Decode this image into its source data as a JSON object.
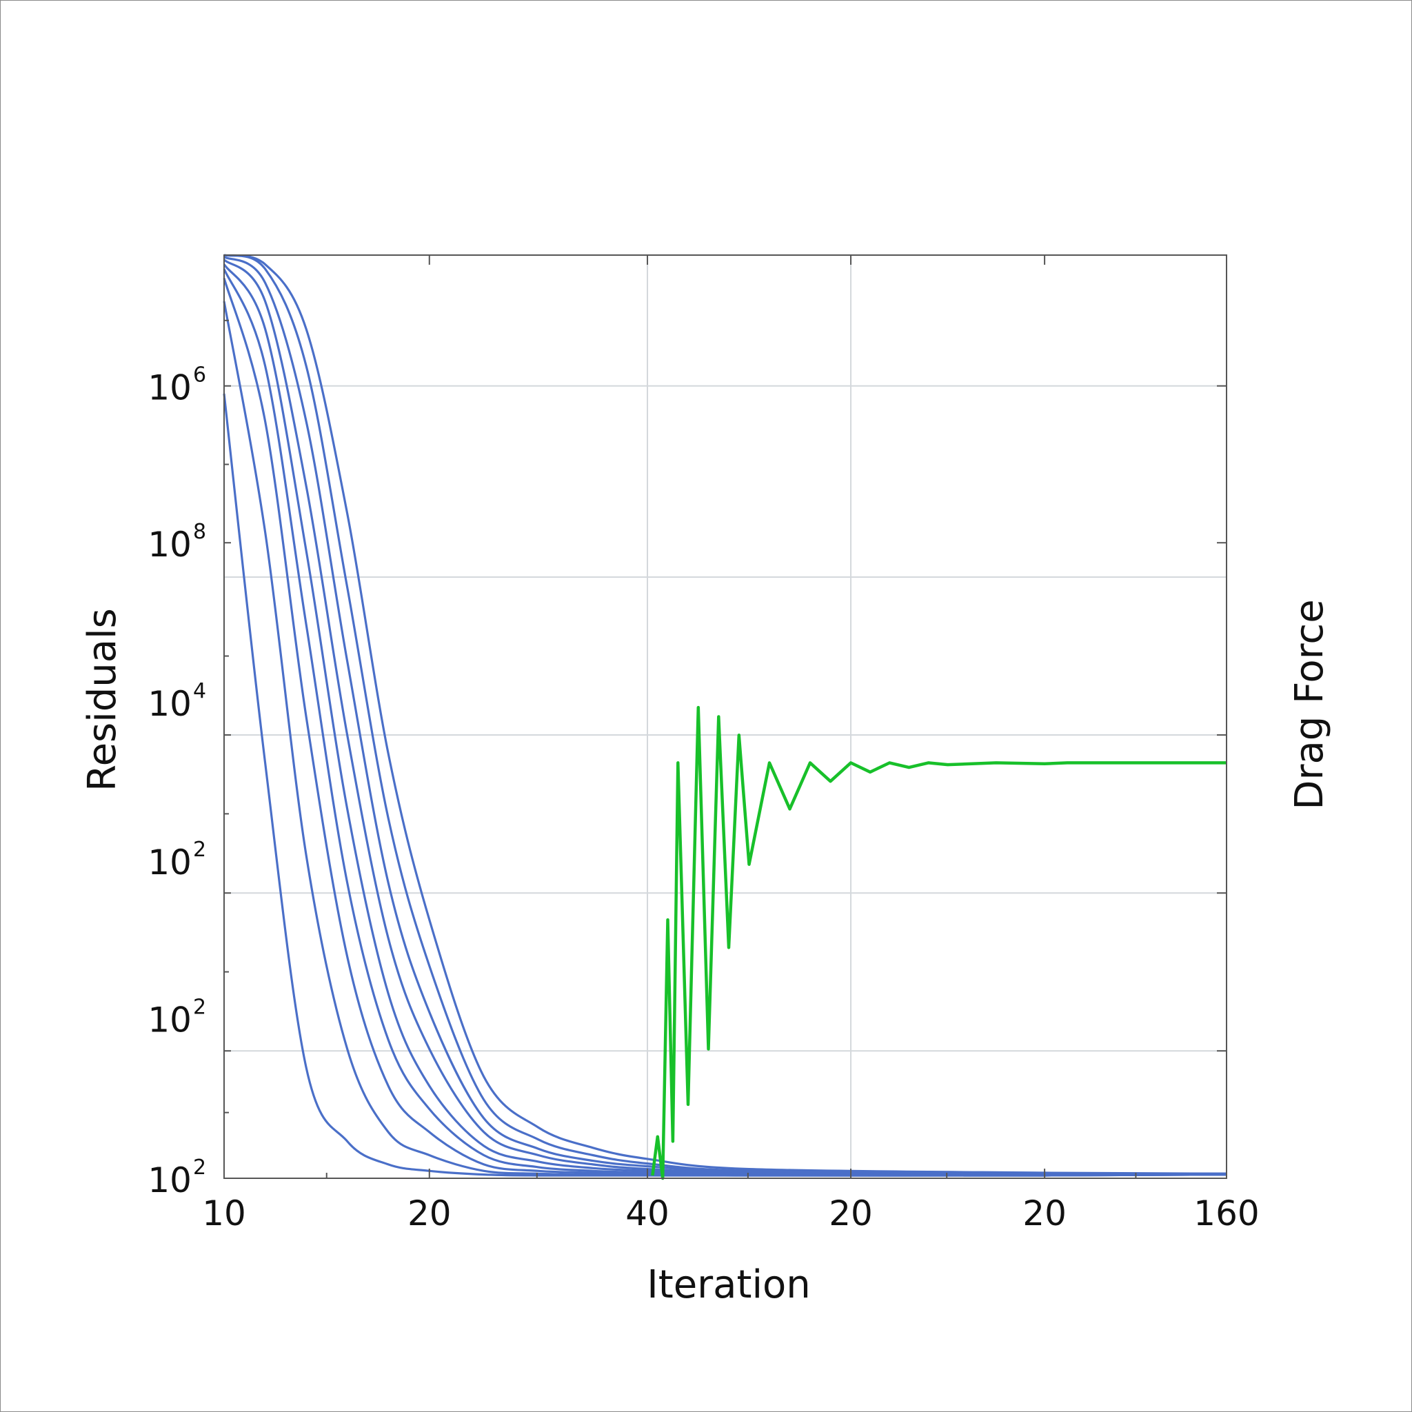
{
  "chart_data": {
    "type": "line",
    "title": "",
    "xlabel": "Iteration",
    "ylabel": "Residuals",
    "y2label": "Drag Force",
    "x_tick_labels": [
      "10",
      "20",
      "40",
      "20",
      "20",
      "160"
    ],
    "y_tick_labels": [
      {
        "base": "10",
        "exp": "6"
      },
      {
        "base": "10",
        "exp": "8"
      },
      {
        "base": "10",
        "exp": "4"
      },
      {
        "base": "10",
        "exp": "2"
      },
      {
        "base": "10",
        "exp": "2"
      },
      {
        "base": "10",
        "exp": "2"
      }
    ],
    "grid": true,
    "colors": {
      "residuals": "#4a6fc8",
      "drag": "#18c02a",
      "grid": "#d4d8dc",
      "axis": "#555555"
    },
    "y_units": "fraction of plot height from bottom (0 = bottom tick 10^2, 1 = top of plot)",
    "series": [
      {
        "group": "residuals",
        "x": [
          10,
          12,
          14,
          16,
          18,
          20,
          25,
          30,
          35,
          40,
          50,
          80,
          160
        ],
        "y": [
          0.85,
          0.45,
          0.12,
          0.04,
          0.015,
          0.008,
          0.004,
          0.003,
          0.003,
          0.003,
          0.003,
          0.003,
          0.004
        ]
      },
      {
        "group": "residuals",
        "x": [
          10,
          12,
          14,
          16,
          18,
          20,
          25,
          30,
          35,
          40,
          50,
          80,
          160
        ],
        "y": [
          0.95,
          0.7,
          0.35,
          0.14,
          0.05,
          0.025,
          0.008,
          0.005,
          0.004,
          0.004,
          0.003,
          0.003,
          0.004
        ]
      },
      {
        "group": "residuals",
        "x": [
          10,
          12,
          14,
          16,
          18,
          20,
          25,
          30,
          35,
          40,
          50,
          80,
          160
        ],
        "y": [
          0.975,
          0.82,
          0.5,
          0.24,
          0.1,
          0.05,
          0.015,
          0.008,
          0.006,
          0.005,
          0.004,
          0.003,
          0.004
        ]
      },
      {
        "group": "residuals",
        "x": [
          10,
          12,
          14,
          16,
          18,
          20,
          25,
          30,
          35,
          40,
          50,
          80,
          160
        ],
        "y": [
          0.985,
          0.88,
          0.6,
          0.32,
          0.15,
          0.075,
          0.025,
          0.012,
          0.008,
          0.006,
          0.004,
          0.004,
          0.004
        ]
      },
      {
        "group": "residuals",
        "x": [
          10,
          12,
          14,
          16,
          18,
          20,
          25,
          30,
          35,
          40,
          50,
          80,
          160
        ],
        "y": [
          0.99,
          0.92,
          0.68,
          0.4,
          0.2,
          0.1,
          0.035,
          0.018,
          0.011,
          0.008,
          0.005,
          0.004,
          0.004
        ]
      },
      {
        "group": "residuals",
        "x": [
          10,
          12,
          14,
          16,
          18,
          20,
          25,
          30,
          35,
          40,
          50,
          80,
          160
        ],
        "y": [
          0.995,
          0.95,
          0.75,
          0.48,
          0.26,
          0.14,
          0.05,
          0.025,
          0.015,
          0.01,
          0.006,
          0.004,
          0.005
        ]
      },
      {
        "group": "residuals",
        "x": [
          10,
          12,
          14,
          16,
          18,
          20,
          25,
          30,
          35,
          40,
          50,
          80,
          160
        ],
        "y": [
          0.998,
          0.97,
          0.82,
          0.56,
          0.32,
          0.18,
          0.065,
          0.032,
          0.019,
          0.013,
          0.007,
          0.005,
          0.005
        ]
      },
      {
        "group": "residuals",
        "x": [
          10,
          12,
          14,
          16,
          18,
          20,
          25,
          30,
          35,
          40,
          50,
          80,
          160
        ],
        "y": [
          1.0,
          0.985,
          0.88,
          0.64,
          0.39,
          0.23,
          0.085,
          0.042,
          0.025,
          0.016,
          0.008,
          0.005,
          0.005
        ]
      },
      {
        "group": "residuals",
        "x": [
          10,
          12,
          14,
          16,
          18,
          20,
          25,
          30,
          35,
          40,
          50,
          80,
          160
        ],
        "y": [
          1.0,
          0.99,
          0.92,
          0.72,
          0.46,
          0.28,
          0.11,
          0.055,
          0.033,
          0.021,
          0.01,
          0.006,
          0.005
        ]
      },
      {
        "group": "drag",
        "x": [
          40.5,
          41,
          41.5,
          42,
          42.5,
          43,
          44,
          45,
          46,
          47,
          48,
          49,
          50,
          52,
          54,
          56,
          58,
          60,
          62,
          64,
          66,
          68,
          70,
          75,
          80,
          90,
          100,
          120,
          140,
          160
        ],
        "y": [
          0.003,
          0.045,
          0.0,
          0.28,
          0.04,
          0.45,
          0.08,
          0.51,
          0.14,
          0.5,
          0.25,
          0.48,
          0.34,
          0.45,
          0.4,
          0.45,
          0.43,
          0.45,
          0.44,
          0.45,
          0.445,
          0.45,
          0.448,
          0.45,
          0.449,
          0.45,
          0.45,
          0.45,
          0.45,
          0.45
        ]
      }
    ]
  }
}
